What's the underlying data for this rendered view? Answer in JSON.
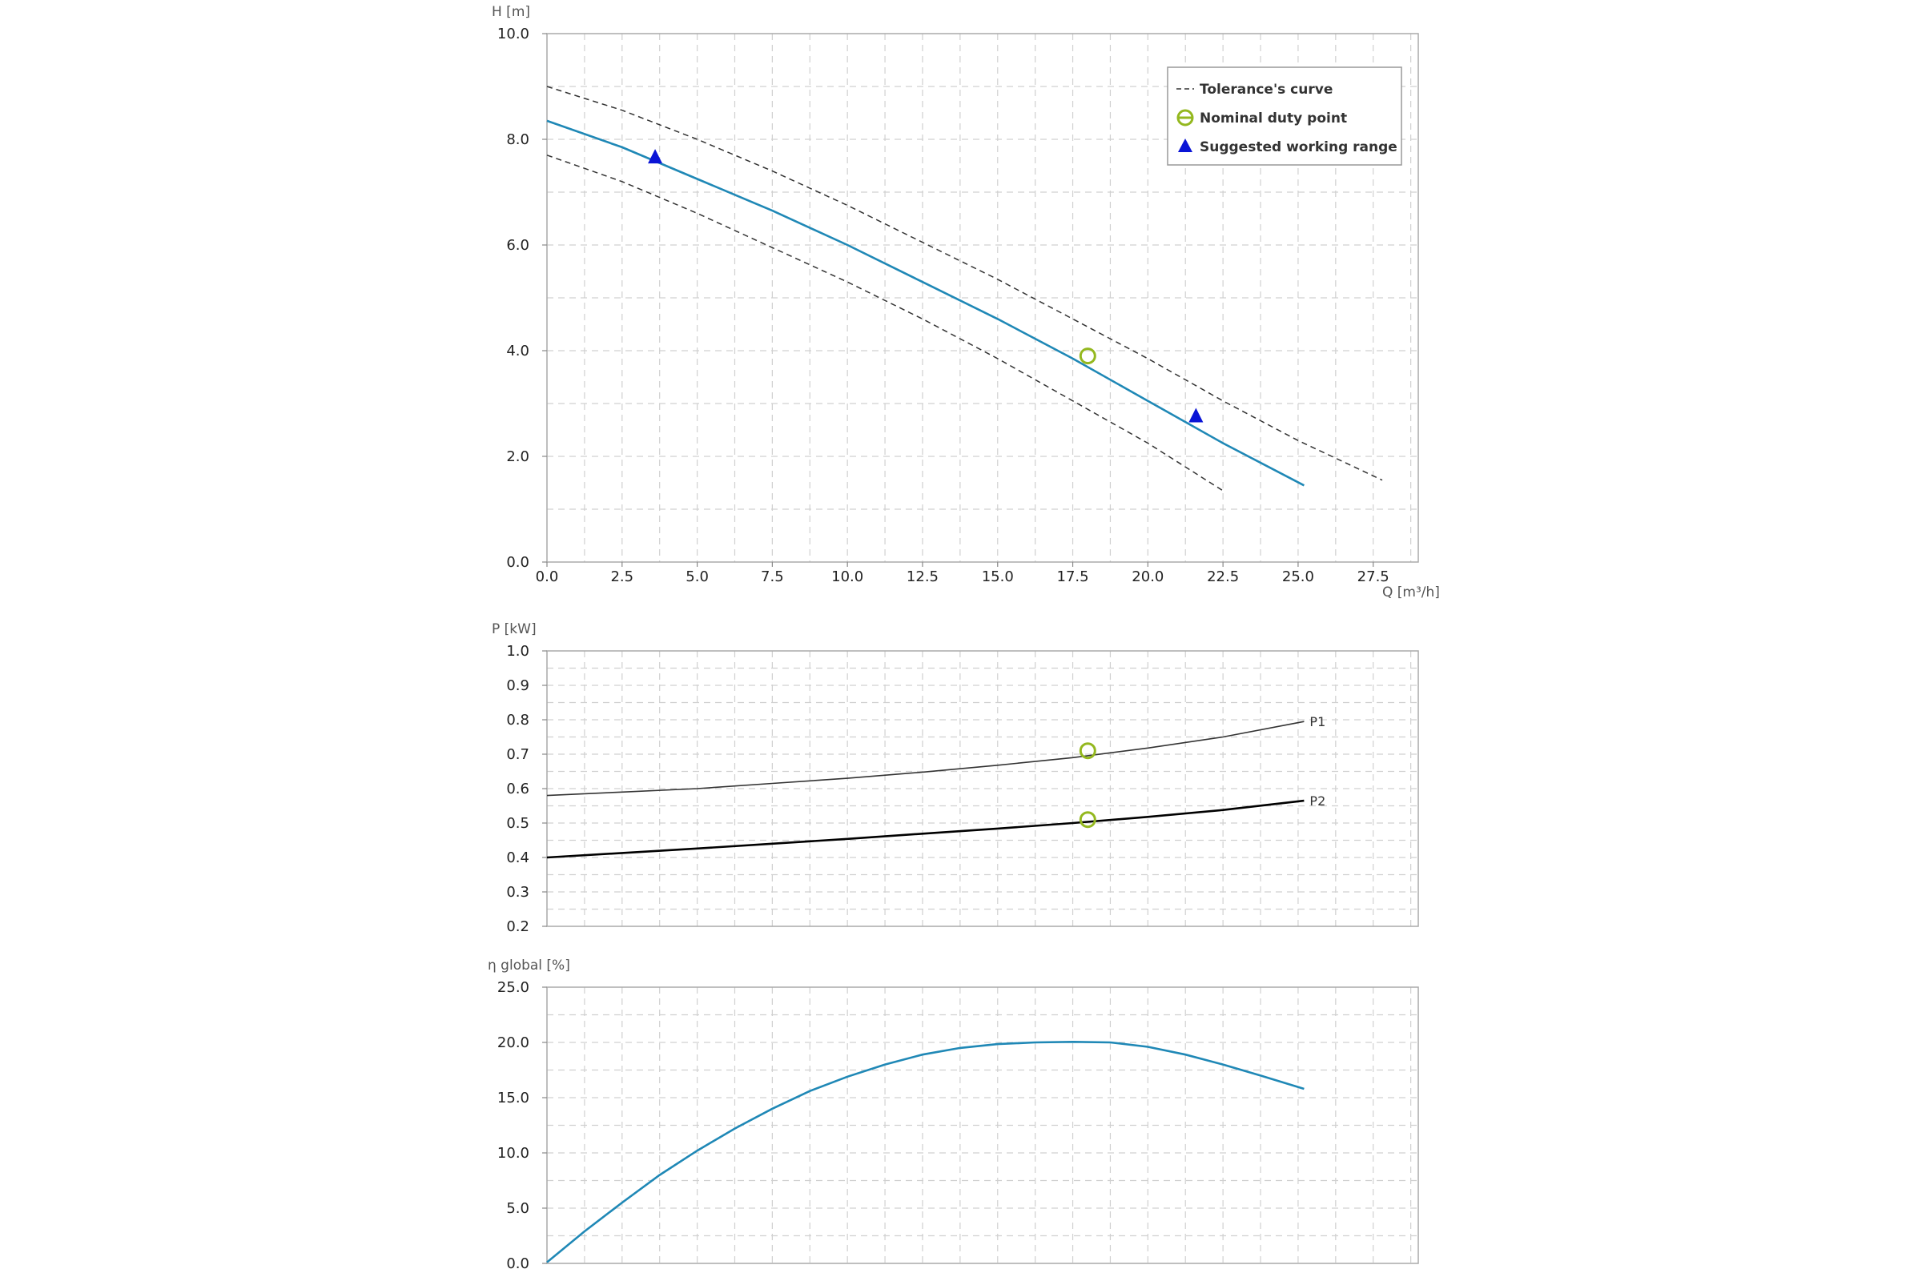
{
  "chart_data": [
    {
      "type": "line",
      "ylabel": "H [m]",
      "xlabel": "Q [m³/h]",
      "xlim": [
        0,
        29
      ],
      "ylim": [
        0,
        10
      ],
      "x_ticks": [
        "0.0",
        "2.5",
        "5.0",
        "7.5",
        "10.0",
        "12.5",
        "15.0",
        "17.5",
        "20.0",
        "22.5",
        "25.0",
        "27.5"
      ],
      "x_tick_values": [
        0,
        2.5,
        5,
        7.5,
        10,
        12.5,
        15,
        17.5,
        20,
        22.5,
        25,
        27.5
      ],
      "y_ticks": [
        "0.0",
        "2.0",
        "4.0",
        "6.0",
        "8.0",
        "10.0"
      ],
      "y_tick_values": [
        0,
        2,
        4,
        6,
        8,
        10
      ],
      "grid": true,
      "legend_position": "top-right",
      "legend": {
        "tolerance_label": "Tolerance's curve",
        "duty_label": "Nominal duty point",
        "range_label": "Suggested working range"
      },
      "colors": {
        "curve": "#1f88b6",
        "tolerance": "#333333",
        "duty": "#94b81f",
        "range": "#0a14d6"
      },
      "series": [
        {
          "role": "curve",
          "x": [
            0,
            2.5,
            5,
            7.5,
            10,
            12.5,
            15,
            17.5,
            20,
            22.5,
            25.2
          ],
          "y": [
            8.35,
            7.85,
            7.25,
            6.65,
            6.0,
            5.3,
            4.6,
            3.85,
            3.05,
            2.25,
            1.45
          ]
        },
        {
          "role": "tolerance-upper",
          "x": [
            0,
            2.5,
            5,
            7.5,
            10,
            12.5,
            15,
            17.5,
            20,
            22.5,
            25,
            27.8
          ],
          "y": [
            9.0,
            8.55,
            8.0,
            7.4,
            6.75,
            6.05,
            5.35,
            4.6,
            3.85,
            3.05,
            2.3,
            1.55
          ]
        },
        {
          "role": "tolerance-lower",
          "x": [
            0,
            2.5,
            5,
            7.5,
            10,
            12.5,
            15,
            17.5,
            20,
            22.5
          ],
          "y": [
            7.7,
            7.2,
            6.6,
            5.95,
            5.3,
            4.6,
            3.85,
            3.05,
            2.25,
            1.35
          ]
        }
      ],
      "duty_point": {
        "x": 18.0,
        "y": 3.9
      },
      "working_range": [
        {
          "x": 3.6,
          "y": 7.65
        },
        {
          "x": 21.6,
          "y": 2.75
        }
      ]
    },
    {
      "type": "line",
      "ylabel": "P [kW]",
      "xlim": [
        0,
        29
      ],
      "ylim": [
        0.2,
        1.0
      ],
      "y_ticks": [
        "0.2",
        "0.3",
        "0.4",
        "0.5",
        "0.6",
        "0.7",
        "0.8",
        "0.9",
        "1.0"
      ],
      "y_tick_values": [
        0.2,
        0.3,
        0.4,
        0.5,
        0.6,
        0.7,
        0.8,
        0.9,
        1.0
      ],
      "grid": true,
      "colors": {
        "p1": "#333333",
        "p2": "#000000",
        "duty": "#94b81f"
      },
      "series": [
        {
          "name": "P1",
          "x": [
            0,
            2.5,
            5,
            7.5,
            10,
            12.5,
            15,
            17.5,
            20,
            22.5,
            25.2
          ],
          "y": [
            0.58,
            0.59,
            0.6,
            0.615,
            0.63,
            0.648,
            0.668,
            0.69,
            0.718,
            0.75,
            0.795
          ]
        },
        {
          "name": "P2",
          "x": [
            0,
            2.5,
            5,
            7.5,
            10,
            12.5,
            15,
            17.5,
            20,
            22.5,
            25.2
          ],
          "y": [
            0.4,
            0.413,
            0.426,
            0.44,
            0.454,
            0.469,
            0.484,
            0.5,
            0.518,
            0.538,
            0.565
          ]
        }
      ],
      "duty_points": [
        {
          "x": 18.0,
          "y": 0.71
        },
        {
          "x": 18.0,
          "y": 0.51
        }
      ]
    },
    {
      "type": "line",
      "ylabel": "η global [%]",
      "xlim": [
        0,
        29
      ],
      "ylim": [
        0,
        25
      ],
      "y_ticks": [
        "0.0",
        "5.0",
        "10.0",
        "15.0",
        "20.0",
        "25.0"
      ],
      "y_tick_values": [
        0,
        5,
        10,
        15,
        20,
        25
      ],
      "grid": true,
      "colors": {
        "curve": "#1f88b6"
      },
      "series": [
        {
          "role": "efficiency",
          "x": [
            0,
            1.25,
            2.5,
            3.75,
            5,
            6.25,
            7.5,
            8.75,
            10,
            11.25,
            12.5,
            13.75,
            15,
            16.25,
            17.5,
            18.75,
            20,
            21.25,
            22.5,
            23.75,
            25.2
          ],
          "y": [
            0.1,
            2.9,
            5.5,
            8.0,
            10.2,
            12.2,
            14.0,
            15.6,
            16.9,
            18.0,
            18.9,
            19.5,
            19.85,
            20.0,
            20.05,
            20.0,
            19.6,
            18.9,
            18.0,
            17.0,
            15.8
          ]
        }
      ]
    }
  ]
}
